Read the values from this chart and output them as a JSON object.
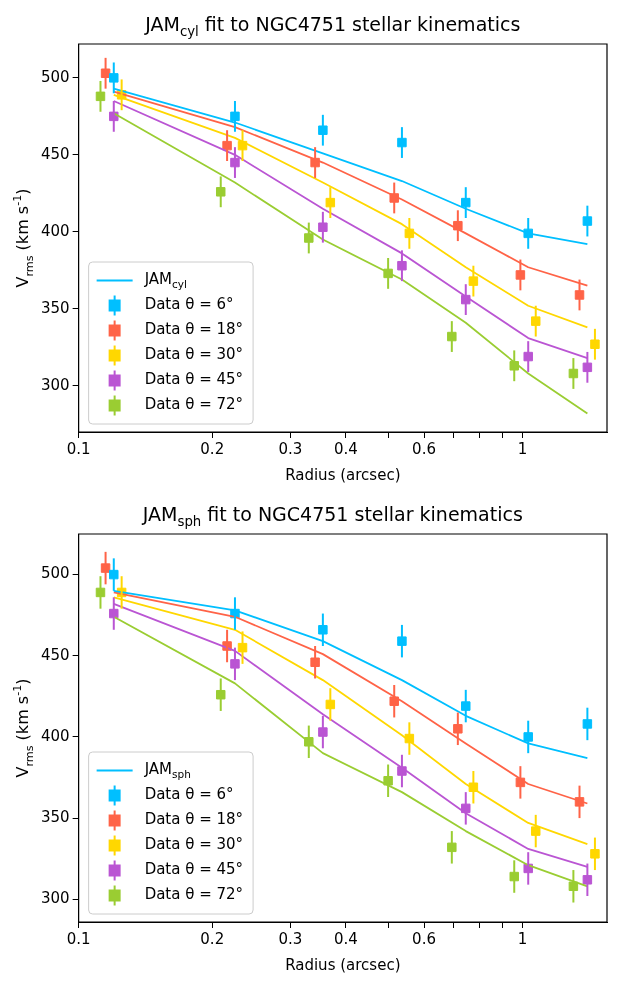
{
  "chart_data": [
    {
      "type": "scatter",
      "title": "JAM$_{cyl}$ fit to NGC4751 stellar kinematics",
      "xlabel": "Radius (arcsec)",
      "ylabel": "V$_{rms}$ (km s$^{-1}$)",
      "log": "x",
      "grid": false,
      "legend": "bottom left",
      "x": [
        0.12,
        0.225,
        0.355,
        0.535,
        0.745,
        1.03,
        1.4
      ],
      "xlim": [
        0.1,
        1.55
      ],
      "xticks": [
        0.1,
        0.2,
        0.3,
        0.4,
        {
          "value": 0.5,
          "label": null
        },
        0.6,
        {
          "value": 0.7,
          "label": null
        },
        {
          "value": 0.8,
          "label": null
        },
        {
          "value": 0.9,
          "label": null
        },
        1
      ],
      "ylim": [
        270,
        522
      ],
      "yticks": [
        300,
        350,
        400,
        450,
        500
      ],
      "series": [
        {
          "name": "JAM$_{cyl}$",
          "type": "line",
          "marker": "none",
          "color": "#00bfff",
          "values": [
            493,
            471,
            451,
            433,
            415,
            399,
            392
          ]
        },
        {
          "type": "line",
          "marker": "none",
          "color": "#ff6347",
          "values": [
            491,
            468,
            445,
            421,
            399,
            377,
            365
          ]
        },
        {
          "type": "line",
          "marker": "none",
          "color": "#ffd700",
          "values": [
            489,
            461,
            432,
            405,
            377,
            352,
            338
          ]
        },
        {
          "type": "line",
          "marker": "none",
          "color": "#ba55d3",
          "values": [
            485,
            450,
            415,
            386,
            358,
            331,
            318
          ]
        },
        {
          "type": "line",
          "marker": "none",
          "color": "#9acd32",
          "values": [
            477,
            432,
            395,
            369,
            341,
            308,
            282
          ]
        },
        {
          "name": "Data θ = 6°",
          "marker": "square",
          "color": "#00bfff",
          "values": [
            500,
            475,
            466,
            458,
            419,
            399,
            407
          ],
          "errors": [
            10,
            10,
            10,
            10,
            10,
            10,
            10
          ]
        },
        {
          "name": "Data θ = 18°",
          "marker": "square",
          "color": "#ff6347",
          "x": [
            0.115,
            0.216,
            0.341,
            0.514,
            0.715,
            0.989,
            1.344
          ],
          "values": [
            503,
            456,
            445,
            422,
            404,
            372,
            359
          ],
          "errors": [
            10,
            10,
            10,
            10,
            10,
            10,
            10
          ]
        },
        {
          "name": "Data θ = 30°",
          "marker": "square",
          "color": "#ffd700",
          "x": [
            0.125,
            0.234,
            0.369,
            0.556,
            0.775,
            1.071,
            1.456
          ],
          "values": [
            489,
            456,
            419,
            399,
            368,
            342,
            327
          ],
          "errors": [
            10,
            10,
            10,
            10,
            10,
            10,
            10
          ]
        },
        {
          "name": "Data θ = 45°",
          "marker": "square",
          "color": "#ba55d3",
          "values": [
            475,
            445,
            403,
            378,
            356,
            319,
            312
          ],
          "errors": [
            10,
            10,
            10,
            10,
            10,
            10,
            10
          ]
        },
        {
          "name": "Data θ = 72°",
          "marker": "square",
          "color": "#9acd32",
          "x": [
            0.112,
            0.209,
            0.33,
            0.498,
            0.693,
            0.958,
            1.302
          ],
          "values": [
            488,
            426,
            396,
            373,
            332,
            313,
            308
          ],
          "errors": [
            10,
            10,
            10,
            10,
            10,
            10,
            10
          ]
        }
      ]
    },
    {
      "type": "scatter",
      "title": "JAM$_{sph}$ fit to NGC4751 stellar kinematics",
      "xlabel": "Radius (arcsec)",
      "ylabel": "V$_{rms}$ (km s$^{-1}$)",
      "log": "x",
      "grid": false,
      "legend": "bottom left",
      "x": [
        0.12,
        0.225,
        0.355,
        0.535,
        0.745,
        1.03,
        1.4
      ],
      "xlim": [
        0.1,
        1.55
      ],
      "xticks": [
        0.1,
        0.2,
        0.3,
        0.4,
        {
          "value": 0.5,
          "label": null
        },
        0.6,
        {
          "value": 0.7,
          "label": null
        },
        {
          "value": 0.8,
          "label": null
        },
        {
          "value": 0.9,
          "label": null
        },
        1
      ],
      "ylim": [
        286,
        525
      ],
      "yticks": [
        300,
        350,
        400,
        450,
        500
      ],
      "series": [
        {
          "name": "JAM$_{sph}$",
          "type": "line",
          "marker": "none",
          "color": "#00bfff",
          "values": [
            490,
            478,
            459,
            435,
            413,
            396,
            387
          ]
        },
        {
          "type": "line",
          "marker": "none",
          "color": "#ff6347",
          "values": [
            489,
            474,
            451,
            422,
            396,
            371,
            359
          ]
        },
        {
          "type": "line",
          "marker": "none",
          "color": "#ffd700",
          "values": [
            486,
            466,
            435,
            401,
            371,
            347,
            334
          ]
        },
        {
          "type": "line",
          "marker": "none",
          "color": "#ba55d3",
          "values": [
            482,
            453,
            414,
            381,
            353,
            331,
            320
          ]
        },
        {
          "type": "line",
          "marker": "none",
          "color": "#9acd32",
          "values": [
            474,
            433,
            390,
            366,
            342,
            321,
            308
          ]
        },
        {
          "name": "Data θ = 6°",
          "marker": "square",
          "color": "#00bfff",
          "values": [
            500,
            476,
            466,
            459,
            419,
            400,
            408
          ],
          "errors": [
            10,
            10,
            10,
            10,
            10,
            10,
            10
          ]
        },
        {
          "name": "Data θ = 18°",
          "marker": "square",
          "color": "#ff6347",
          "x": [
            0.115,
            0.216,
            0.341,
            0.514,
            0.715,
            0.989,
            1.344
          ],
          "values": [
            504,
            456,
            446,
            422,
            405,
            372,
            360
          ],
          "errors": [
            10,
            10,
            10,
            10,
            10,
            10,
            10
          ]
        },
        {
          "name": "Data θ = 30°",
          "marker": "square",
          "color": "#ffd700",
          "x": [
            0.125,
            0.234,
            0.369,
            0.556,
            0.775,
            1.071,
            1.456
          ],
          "values": [
            489,
            455,
            420,
            399,
            369,
            342,
            328
          ],
          "errors": [
            10,
            10,
            10,
            10,
            10,
            10,
            10
          ]
        },
        {
          "name": "Data θ = 45°",
          "marker": "square",
          "color": "#ba55d3",
          "values": [
            476,
            445,
            403,
            379,
            356,
            319,
            312
          ],
          "errors": [
            10,
            10,
            10,
            10,
            10,
            10,
            10
          ]
        },
        {
          "name": "Data θ = 72°",
          "marker": "square",
          "color": "#9acd32",
          "x": [
            0.112,
            0.209,
            0.33,
            0.498,
            0.693,
            0.958,
            1.302
          ],
          "values": [
            489,
            426,
            397,
            373,
            332,
            314,
            308
          ],
          "errors": [
            10,
            10,
            10,
            10,
            10,
            10,
            10
          ]
        }
      ]
    }
  ]
}
